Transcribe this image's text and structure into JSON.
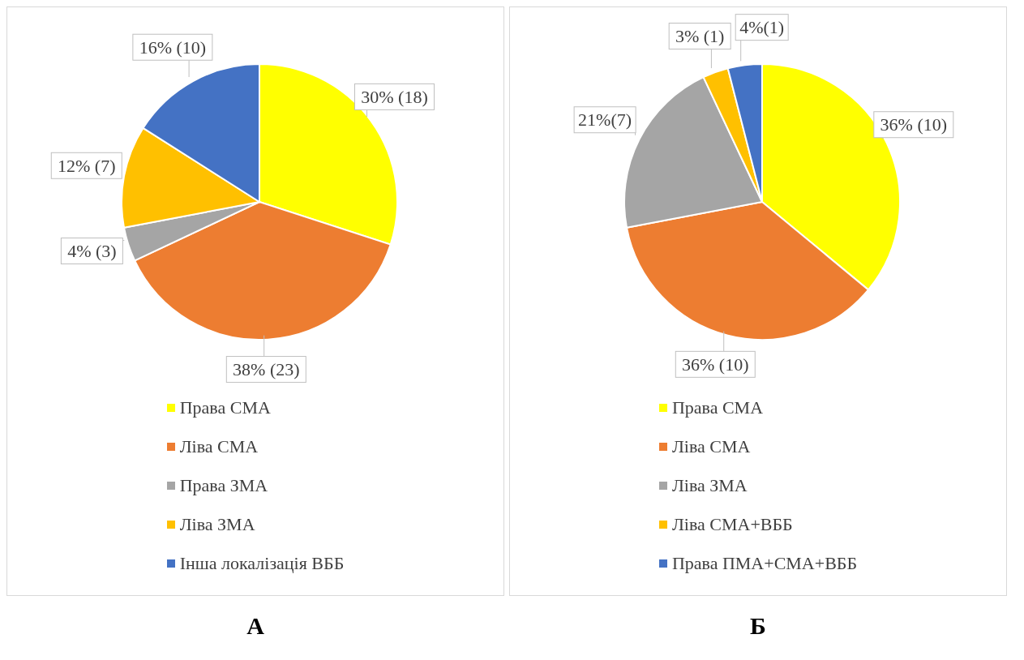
{
  "chart_data": [
    {
      "type": "pie",
      "title": "А",
      "categories": [
        "Права СМА",
        "Ліва СМА",
        "Права ЗМА",
        "Ліва ЗМА",
        "Інша локалізація ВББ"
      ],
      "values": [
        30,
        38,
        4,
        12,
        16
      ],
      "value_labels": [
        "30% (18)",
        "38% (23)",
        "4% (3)",
        "12% (7)",
        "16% (10)"
      ],
      "colors": [
        "#ffff00",
        "#ed7d31",
        "#a5a5a5",
        "#ffc000",
        "#4472c4"
      ],
      "legend": "bottom"
    },
    {
      "type": "pie",
      "title": "Б",
      "categories": [
        "Права СМА",
        "Ліва СМА",
        "Ліва ЗМА",
        "Ліва СМА+ВББ",
        "Права ПМА+СМА+ВББ"
      ],
      "values": [
        36,
        36,
        21,
        3,
        4
      ],
      "value_labels": [
        "36% (10)",
        "36% (10)",
        "21%(7)",
        "3% (1)",
        "4%(1)"
      ],
      "colors": [
        "#ffff00",
        "#ed7d31",
        "#a5a5a5",
        "#ffc000",
        "#4472c4"
      ],
      "legend": "bottom"
    }
  ]
}
